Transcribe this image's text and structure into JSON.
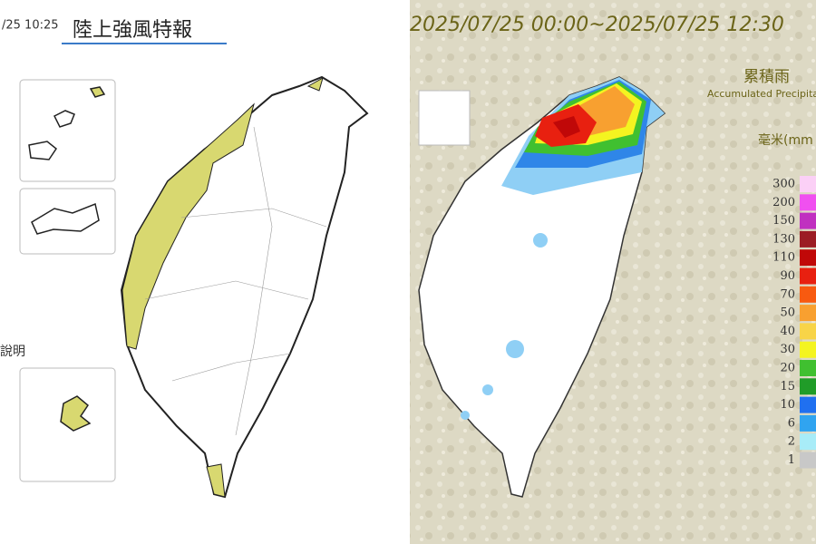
{
  "left_panel": {
    "timestamp": "/25 10:25",
    "title": "陸上強風特報",
    "note": "說明"
  },
  "right_panel": {
    "period": "2025/07/25 00:00~2025/07/25 12:30",
    "legend_title": "累積雨",
    "legend_subtitle": "Accumulated Precipitati",
    "unit": "毫米(mm",
    "legend": [
      {
        "value": 300,
        "color": "#fbd0f6"
      },
      {
        "value": 200,
        "color": "#f050f0"
      },
      {
        "value": 150,
        "color": "#c030c0"
      },
      {
        "value": 130,
        "color": "#9c1c24"
      },
      {
        "value": 110,
        "color": "#c00808"
      },
      {
        "value": 90,
        "color": "#e82010"
      },
      {
        "value": 70,
        "color": "#f85a10"
      },
      {
        "value": 50,
        "color": "#f8a030"
      },
      {
        "value": 40,
        "color": "#f8d448"
      },
      {
        "value": 30,
        "color": "#f4f420"
      },
      {
        "value": 20,
        "color": "#40c030"
      },
      {
        "value": 15,
        "color": "#209c28"
      },
      {
        "value": 10,
        "color": "#2070f0"
      },
      {
        "value": 6,
        "color": "#30a4f0"
      },
      {
        "value": 2,
        "color": "#a8ecf8"
      },
      {
        "value": 1,
        "color": "#c8c8c8"
      }
    ]
  }
}
